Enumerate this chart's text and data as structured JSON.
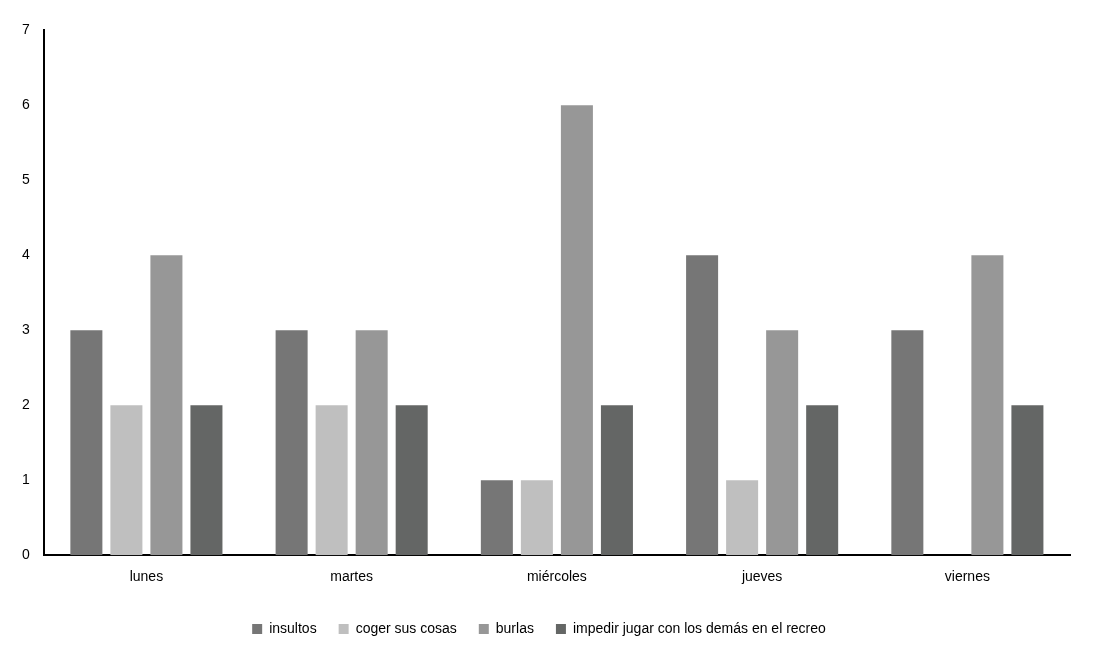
{
  "chart_data": {
    "type": "bar",
    "categories": [
      "lunes",
      "martes",
      "miércoles",
      "jueves",
      "viernes"
    ],
    "series": [
      {
        "name": "insultos",
        "color": "#767676",
        "values": [
          3,
          3,
          1,
          4,
          3
        ]
      },
      {
        "name": "coger sus cosas",
        "color": "#bfbfbf",
        "values": [
          2,
          2,
          1,
          1,
          0
        ]
      },
      {
        "name": "burlas",
        "color": "#979797",
        "values": [
          4,
          3,
          6,
          3,
          4
        ]
      },
      {
        "name": "impedir jugar con los demás en el recreo",
        "color": "#646665",
        "values": [
          2,
          2,
          2,
          2,
          2
        ]
      }
    ],
    "ylim": [
      0,
      7
    ],
    "yticks": [
      0,
      1,
      2,
      3,
      4,
      5,
      6,
      7
    ],
    "grid": false,
    "legend": "bottom"
  }
}
